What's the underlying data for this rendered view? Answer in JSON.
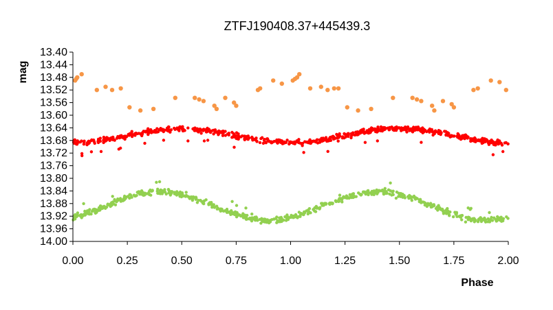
{
  "chart_data": {
    "type": "scatter",
    "title": "ZTFJ190408.37+445439.3",
    "xlabel": "Phase",
    "ylabel": "mag",
    "xlim": [
      0,
      2
    ],
    "ylim": [
      14.0,
      13.4
    ],
    "y_inverted": true,
    "grid": false,
    "legend": "none",
    "x_ticks": [
      "0.00",
      "0.25",
      "0.50",
      "0.75",
      "1.00",
      "1.25",
      "1.50",
      "1.75",
      "2.00"
    ],
    "y_ticks": [
      "13.40",
      "13.44",
      "13.48",
      "13.52",
      "13.56",
      "13.60",
      "13.64",
      "13.68",
      "13.72",
      "13.76",
      "13.80",
      "13.84",
      "13.88",
      "13.92",
      "13.96",
      "14.00"
    ],
    "series": [
      {
        "color": "#f79646",
        "x": [
          0.01,
          0.015,
          0.02,
          0.04,
          0.11,
          0.15,
          0.18,
          0.22,
          0.26,
          0.31,
          0.37,
          0.47,
          0.56,
          0.58,
          0.6,
          0.65,
          0.66,
          0.7,
          0.74,
          0.75,
          0.85,
          0.86,
          0.92,
          0.96,
          1.01,
          1.02,
          1.03,
          1.04,
          1.09,
          1.14,
          1.17,
          1.2,
          1.22,
          1.26,
          1.31,
          1.37,
          1.47,
          1.56,
          1.58,
          1.6,
          1.65,
          1.66,
          1.7,
          1.74,
          1.75,
          1.84,
          1.86,
          1.92,
          1.96,
          1.99
        ],
        "y": [
          13.49,
          13.485,
          13.48,
          13.47,
          13.52,
          13.51,
          13.52,
          13.515,
          13.575,
          13.585,
          13.58,
          13.545,
          13.545,
          13.55,
          13.555,
          13.57,
          13.58,
          13.545,
          13.56,
          13.57,
          13.52,
          13.515,
          13.49,
          13.5,
          13.49,
          13.485,
          13.48,
          13.47,
          13.515,
          13.51,
          13.52,
          13.515,
          13.515,
          13.575,
          13.585,
          13.58,
          13.545,
          13.545,
          13.55,
          13.555,
          13.57,
          13.585,
          13.555,
          13.565,
          13.575,
          13.52,
          13.515,
          13.49,
          13.495,
          13.52
        ]
      },
      {
        "color": "#ff0000",
        "model": "13.66 + 0.02 * cos(2*pi*phase)",
        "x_range": [
          0,
          2
        ],
        "y_range": [
          13.62,
          13.73
        ]
      },
      {
        "color": "#92d050",
        "model": "13.895 - 0.04 * sin(2*pi*(phase - 0.15))",
        "x_range": [
          0,
          2
        ],
        "y_range": [
          13.76,
          13.95
        ]
      }
    ]
  }
}
